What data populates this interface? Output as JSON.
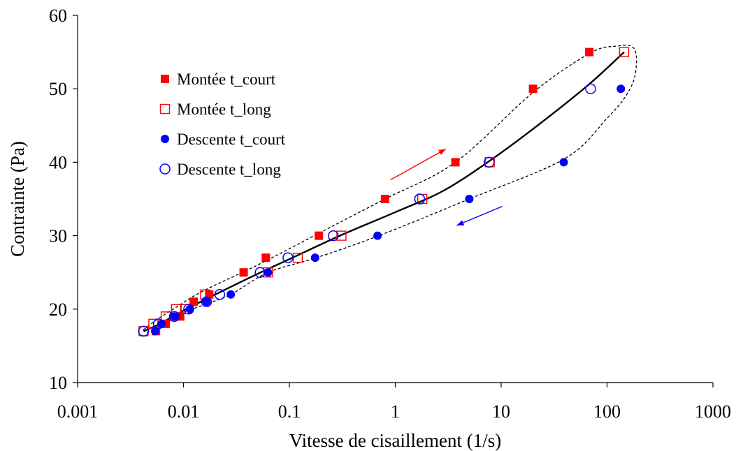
{
  "chart_data": {
    "type": "scatter",
    "title": "",
    "xlabel": "Vitesse de cisaillement (1/s)",
    "ylabel": "Contrainte (Pa)",
    "xscale": "log",
    "xlim": [
      0.001,
      1000
    ],
    "ylim": [
      10,
      60
    ],
    "xticks": [
      0.001,
      0.01,
      0.1,
      1,
      10,
      100,
      1000
    ],
    "xtick_labels": [
      "0.001",
      "0.01",
      "0.1",
      "1",
      "10",
      "100",
      "1000"
    ],
    "yticks": [
      10,
      20,
      30,
      40,
      50,
      60
    ],
    "ytick_labels": [
      "10",
      "20",
      "30",
      "40",
      "50",
      "60"
    ],
    "grid": false,
    "legend_position": "top-left",
    "series": [
      {
        "name": "Montée t_court",
        "marker": "filled-square",
        "color": "#ff0000",
        "x": [
          0.0055,
          0.0068,
          0.0093,
          0.0125,
          0.0175,
          0.037,
          0.06,
          0.19,
          0.8,
          3.7,
          20,
          68
        ],
        "y": [
          17,
          18,
          19,
          21,
          22,
          25,
          27,
          30,
          35,
          40,
          50,
          55
        ]
      },
      {
        "name": "Montée t_long",
        "marker": "open-square",
        "color": "#ff0000",
        "x": [
          0.0042,
          0.0052,
          0.0068,
          0.0085,
          0.0105,
          0.016,
          0.063,
          0.12,
          0.31,
          1.8,
          7.8,
          145
        ],
        "y": [
          17,
          18,
          19,
          20,
          20,
          22,
          25,
          27,
          30,
          35,
          40,
          55
        ]
      },
      {
        "name": "Descente t_court",
        "marker": "filled-circle",
        "color": "#0000ff",
        "x": [
          0.0054,
          0.0062,
          0.0082,
          0.0115,
          0.0165,
          0.028,
          0.063,
          0.175,
          0.68,
          5.0,
          39,
          135
        ],
        "y": [
          17,
          18,
          19,
          20,
          21,
          22,
          25,
          27,
          30,
          35,
          40,
          50
        ]
      },
      {
        "name": "Descente t_long",
        "marker": "open-circle",
        "color": "#0000ff",
        "x": [
          0.0042,
          0.0058,
          0.0082,
          0.0112,
          0.0165,
          0.022,
          0.053,
          0.097,
          0.26,
          1.7,
          7.7,
          70
        ],
        "y": [
          17,
          18,
          19,
          20,
          21,
          22,
          25,
          27,
          30,
          35,
          40,
          50
        ]
      }
    ],
    "fit_curve": {
      "style": "solid",
      "color": "#000000",
      "x": [
        0.0042,
        0.006,
        0.01,
        0.02,
        0.05,
        0.1,
        0.3,
        1,
        3,
        10,
        30,
        70,
        145
      ],
      "y": [
        17,
        18,
        19.8,
        22,
        24.8,
        26.8,
        30,
        33.2,
        36.3,
        41.3,
        46.5,
        50.8,
        55
      ]
    },
    "envelope": {
      "style": "dashed",
      "color": "#000000",
      "x": [
        0.0042,
        0.0055,
        0.008,
        0.015,
        0.05,
        0.2,
        0.8,
        3.7,
        20,
        68,
        120,
        180,
        185,
        150,
        100,
        40,
        5,
        0.7,
        0.18,
        0.063,
        0.028,
        0.015,
        0.008,
        0.0055,
        0.0045,
        0.0042
      ],
      "y": [
        17.2,
        18.5,
        20,
        22.4,
        26,
        30.5,
        35,
        40,
        49.5,
        54.8,
        55.8,
        55.5,
        52,
        49,
        46,
        40.5,
        35,
        30,
        27,
        25,
        22,
        20.5,
        19,
        17.5,
        16.8,
        17.2
      ]
    },
    "annotations": [
      {
        "type": "arrow",
        "color": "#ff0000",
        "direction": "up",
        "from": [
          0.9,
          37.6
        ],
        "to": [
          3.0,
          41.8
        ]
      },
      {
        "type": "arrow",
        "color": "#0000ff",
        "direction": "down",
        "from": [
          10.3,
          34.0
        ],
        "to": [
          3.8,
          31.4
        ]
      }
    ]
  }
}
